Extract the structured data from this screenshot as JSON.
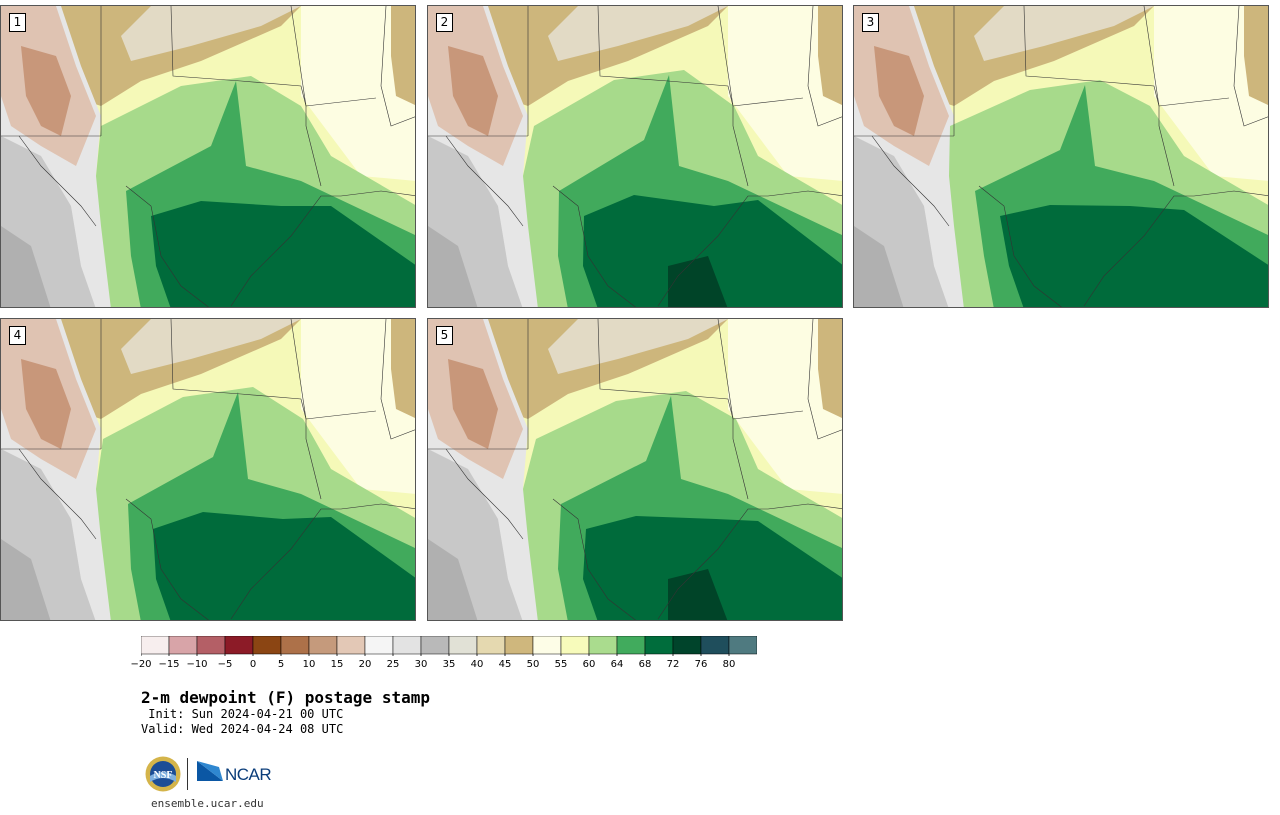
{
  "panels": [
    {
      "label": "1",
      "variant": 0
    },
    {
      "label": "2",
      "variant": 1
    },
    {
      "label": "3",
      "variant": 2
    },
    {
      "label": "4",
      "variant": 3
    },
    {
      "label": "5",
      "variant": 4
    }
  ],
  "colorbar": {
    "ticks": [
      "−20",
      "−15",
      "−10",
      "−5",
      "0",
      "5",
      "10",
      "15",
      "20",
      "25",
      "30",
      "35",
      "40",
      "45",
      "50",
      "55",
      "60",
      "64",
      "68",
      "72",
      "76",
      "80"
    ],
    "colors": [
      "#f7eeee",
      "#d8a4a8",
      "#b45f66",
      "#8c1b27",
      "#8b4513",
      "#ad7149",
      "#c59a7c",
      "#e3c8b6",
      "#f5f5f5",
      "#e3e3e3",
      "#b9b9b9",
      "#e1e1d6",
      "#e5d9b0",
      "#cfb77d",
      "#fdfde7",
      "#f7fbbb",
      "#aadc8e",
      "#41ab5d",
      "#006d3c",
      "#00442b",
      "#1f4e5c",
      "#4f7a80"
    ]
  },
  "title": "2-m dewpoint (F) postage stamp",
  "init": " Init: Sun 2024-04-21 00 UTC",
  "valid": "Valid: Wed 2024-04-24 08 UTC",
  "logos": {
    "nsf": "NSF",
    "ncar": "NCAR"
  },
  "website": "ensemble.ucar.edu",
  "map_colors": {
    "west_gray": "#c8c8c8",
    "west_light": "#e6e6e6",
    "west_dark": "#b0b0b0",
    "brown_light": "#dfc3b2",
    "brown_mid": "#c8977a",
    "tan_north": "#cdb67c",
    "beige": "#e2dac5",
    "pale_yellow": "#fdfde2",
    "yellow": "#f5f9b8",
    "light_green": "#a7da8b",
    "mid_green": "#41aa5c",
    "dark_green": "#006b3b",
    "darkest_green": "#004428",
    "state_line": "#333333"
  }
}
